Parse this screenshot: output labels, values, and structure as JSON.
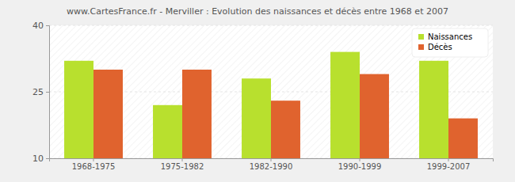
{
  "chart_data": {
    "type": "bar",
    "title": "www.CartesFrance.fr - Merviller : Evolution des naissances et décès entre 1968 et 2007",
    "categories": [
      "1968-1975",
      "1975-1982",
      "1982-1990",
      "1990-1999",
      "1999-2007"
    ],
    "series": [
      {
        "name": "Naissances",
        "color": "#b8e02e",
        "values": [
          32,
          22,
          28,
          34,
          32
        ]
      },
      {
        "name": "Décès",
        "color": "#e0632e",
        "values": [
          30,
          30,
          23,
          29,
          19
        ]
      }
    ],
    "ylim": [
      10,
      40
    ],
    "yticks": [
      10,
      25,
      40
    ],
    "grid": true,
    "legend": "top-right"
  }
}
